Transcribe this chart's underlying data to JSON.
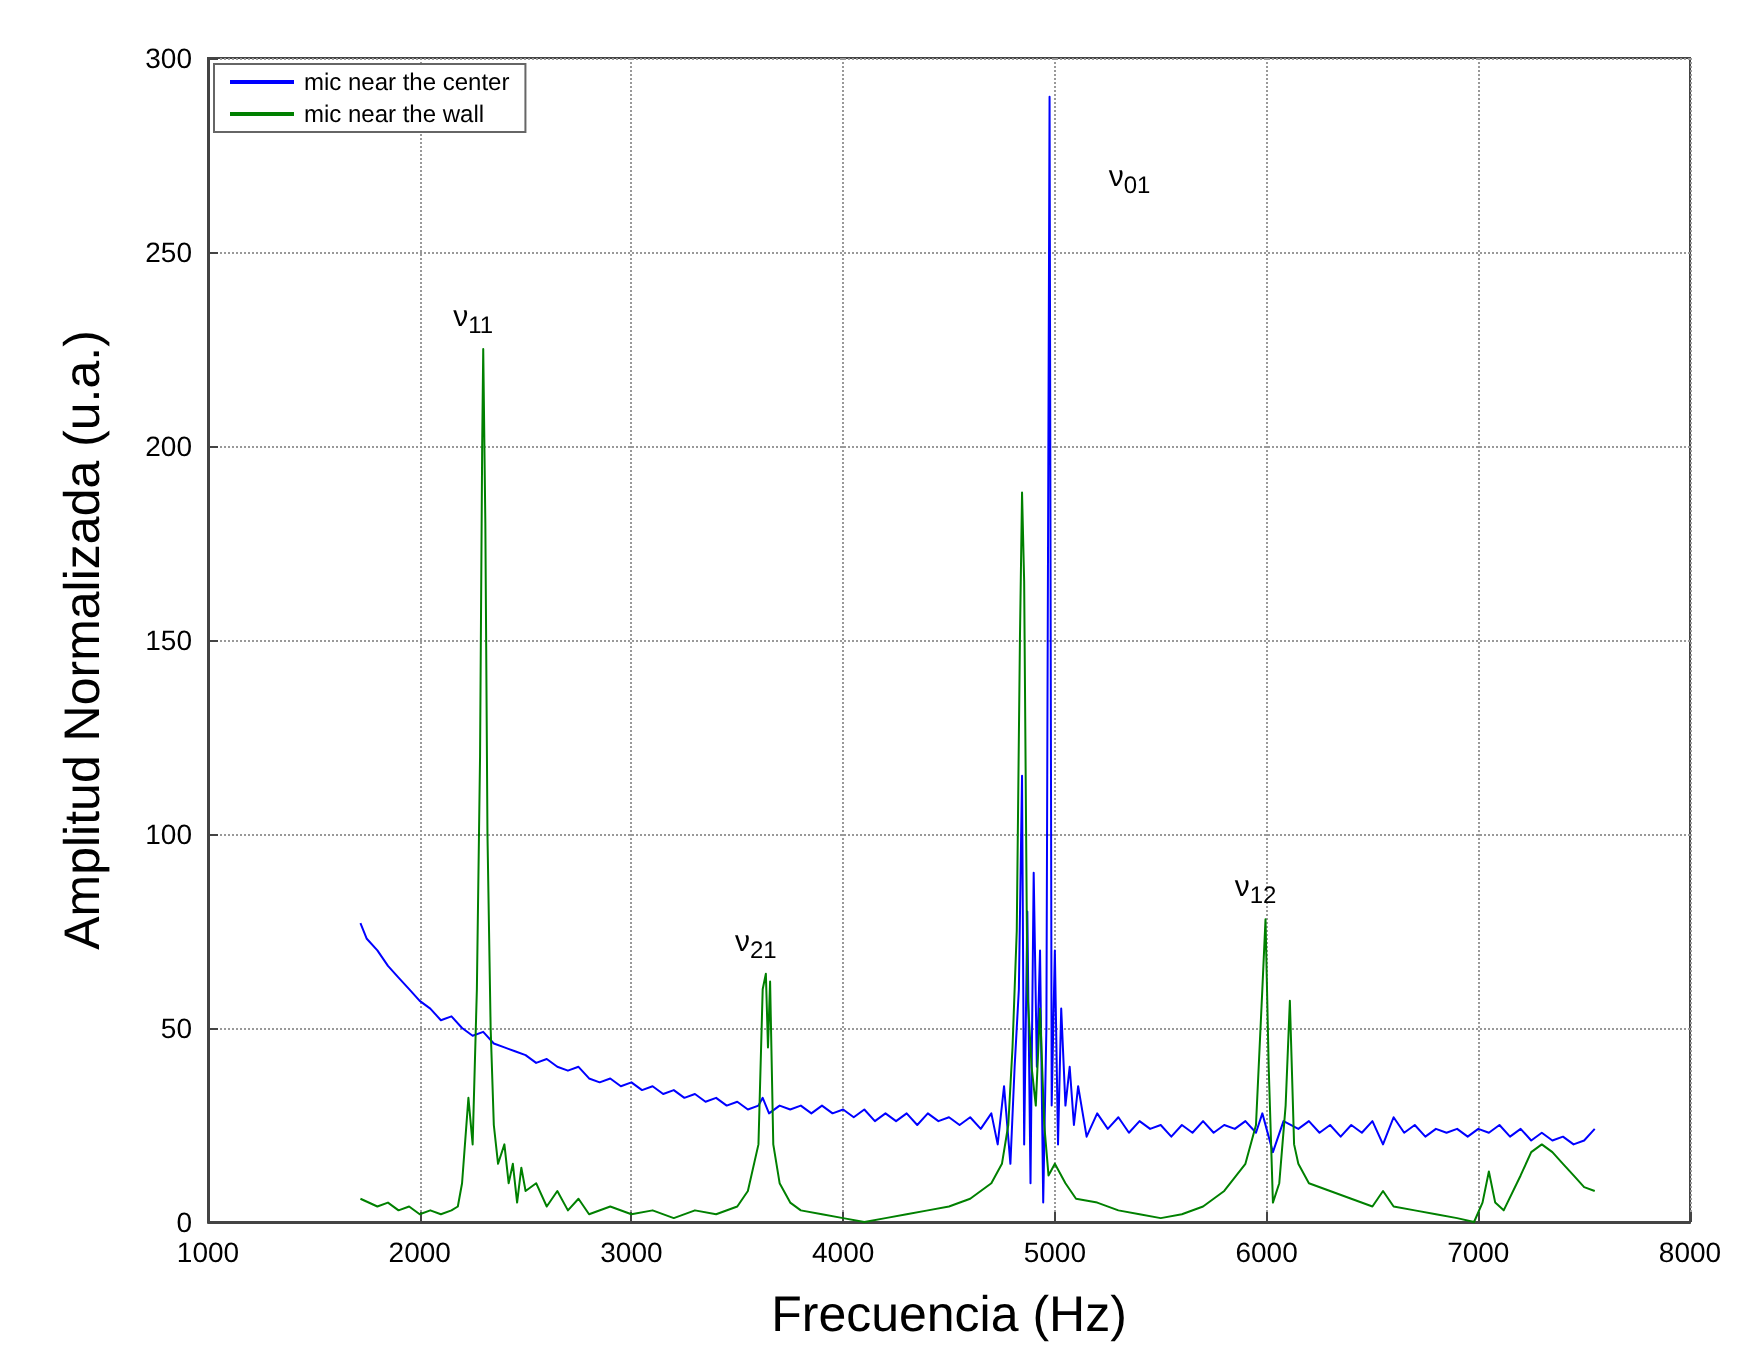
{
  "chart_data": {
    "type": "line",
    "xlabel": "Frecuencia (Hz)",
    "ylabel": "Amplitud Normalizada (u.a.)",
    "xlim": [
      1000,
      8000
    ],
    "xticks": [
      1000,
      2000,
      3000,
      4000,
      5000,
      6000,
      7000,
      8000
    ],
    "ylim": [
      0,
      300
    ],
    "yticks": [
      0,
      50,
      100,
      150,
      200,
      250,
      300
    ],
    "grid": true,
    "legend": "top left",
    "marker": "none",
    "annotations": [
      {
        "text": "ν$_{11}$",
        "x": 2300,
        "y": 225
      },
      {
        "text": "ν$_{21}$",
        "x": 3635,
        "y": 64
      },
      {
        "text": "ν$_{01}$",
        "x": 4975,
        "y": 290
      },
      {
        "text": "ν$_{12}$",
        "x": 5995,
        "y": 78
      }
    ],
    "series": [
      {
        "name": "mic near the center",
        "color": "#0000ff",
        "x": [
          1720,
          1750,
          1800,
          1850,
          1900,
          1950,
          2000,
          2050,
          2100,
          2150,
          2200,
          2250,
          2300,
          2350,
          2400,
          2450,
          2500,
          2550,
          2600,
          2650,
          2700,
          2750,
          2800,
          2850,
          2900,
          2950,
          3000,
          3050,
          3100,
          3150,
          3200,
          3250,
          3300,
          3350,
          3400,
          3450,
          3500,
          3550,
          3600,
          3620,
          3650,
          3700,
          3750,
          3800,
          3850,
          3900,
          3950,
          4000,
          4050,
          4100,
          4150,
          4200,
          4250,
          4300,
          4350,
          4400,
          4450,
          4500,
          4550,
          4600,
          4650,
          4700,
          4730,
          4760,
          4790,
          4810,
          4830,
          4845,
          4855,
          4870,
          4885,
          4900,
          4915,
          4930,
          4945,
          4960,
          4975,
          4985,
          5000,
          5015,
          5030,
          5050,
          5070,
          5090,
          5110,
          5150,
          5200,
          5250,
          5300,
          5350,
          5400,
          5450,
          5500,
          5550,
          5600,
          5650,
          5700,
          5750,
          5800,
          5850,
          5900,
          5950,
          5980,
          6000,
          6030,
          6080,
          6150,
          6200,
          6250,
          6300,
          6350,
          6400,
          6450,
          6500,
          6550,
          6600,
          6650,
          6700,
          6750,
          6800,
          6850,
          6900,
          6950,
          7000,
          7050,
          7100,
          7150,
          7200,
          7250,
          7300,
          7350,
          7400,
          7450,
          7500,
          7550
        ],
        "values": [
          77,
          73,
          70,
          66,
          63,
          60,
          57,
          55,
          52,
          53,
          50,
          48,
          49,
          46,
          45,
          44,
          43,
          41,
          42,
          40,
          39,
          40,
          37,
          36,
          37,
          35,
          36,
          34,
          35,
          33,
          34,
          32,
          33,
          31,
          32,
          30,
          31,
          29,
          30,
          32,
          28,
          30,
          29,
          30,
          28,
          30,
          28,
          29,
          27,
          29,
          26,
          28,
          26,
          28,
          25,
          28,
          26,
          27,
          25,
          27,
          24,
          28,
          20,
          35,
          15,
          40,
          60,
          115,
          20,
          80,
          10,
          90,
          40,
          70,
          5,
          50,
          290,
          30,
          70,
          20,
          55,
          30,
          40,
          25,
          35,
          22,
          28,
          24,
          27,
          23,
          26,
          24,
          25,
          22,
          25,
          23,
          26,
          23,
          25,
          24,
          26,
          23,
          28,
          24,
          18,
          26,
          24,
          26,
          23,
          25,
          22,
          25,
          23,
          26,
          20,
          27,
          23,
          25,
          22,
          24,
          23,
          24,
          22,
          24,
          23,
          25,
          22,
          24,
          21,
          23,
          21,
          22,
          20,
          21,
          24
        ]
      },
      {
        "name": "mic near the wall",
        "color": "#008000",
        "x": [
          1720,
          1800,
          1850,
          1900,
          1950,
          2000,
          2050,
          2100,
          2150,
          2180,
          2200,
          2230,
          2250,
          2270,
          2285,
          2295,
          2300,
          2310,
          2320,
          2335,
          2350,
          2370,
          2400,
          2420,
          2440,
          2460,
          2480,
          2500,
          2550,
          2600,
          2650,
          2700,
          2750,
          2800,
          2900,
          3000,
          3100,
          3200,
          3300,
          3400,
          3500,
          3550,
          3600,
          3620,
          3635,
          3645,
          3655,
          3670,
          3700,
          3750,
          3800,
          3900,
          4000,
          4100,
          4200,
          4300,
          4400,
          4500,
          4600,
          4700,
          4750,
          4780,
          4800,
          4820,
          4835,
          4845,
          4855,
          4870,
          4890,
          4910,
          4930,
          4950,
          4970,
          5000,
          5050,
          5100,
          5200,
          5300,
          5400,
          5500,
          5600,
          5700,
          5800,
          5900,
          5950,
          5980,
          5995,
          6010,
          6030,
          6060,
          6090,
          6110,
          6130,
          6150,
          6200,
          6300,
          6400,
          6500,
          6550,
          6600,
          6700,
          6800,
          6900,
          6980,
          7020,
          7050,
          7080,
          7120,
          7200,
          7250,
          7300,
          7350,
          7400,
          7450,
          7500,
          7550
        ],
        "values": [
          6,
          4,
          5,
          3,
          4,
          2,
          3,
          2,
          3,
          4,
          10,
          32,
          20,
          60,
          120,
          200,
          225,
          180,
          100,
          50,
          25,
          15,
          20,
          10,
          15,
          5,
          14,
          8,
          10,
          4,
          8,
          3,
          6,
          2,
          4,
          2,
          3,
          1,
          3,
          2,
          4,
          8,
          20,
          60,
          64,
          45,
          62,
          20,
          10,
          5,
          3,
          2,
          1,
          0,
          1,
          2,
          3,
          4,
          6,
          10,
          15,
          25,
          45,
          75,
          150,
          188,
          165,
          60,
          40,
          30,
          55,
          25,
          12,
          15,
          10,
          6,
          5,
          3,
          2,
          1,
          2,
          4,
          8,
          15,
          25,
          60,
          78,
          40,
          5,
          10,
          30,
          57,
          20,
          15,
          10,
          8,
          6,
          4,
          8,
          4,
          3,
          2,
          1,
          0,
          5,
          13,
          5,
          3,
          12,
          18,
          20,
          18,
          15,
          12,
          9,
          8
        ]
      }
    ]
  }
}
